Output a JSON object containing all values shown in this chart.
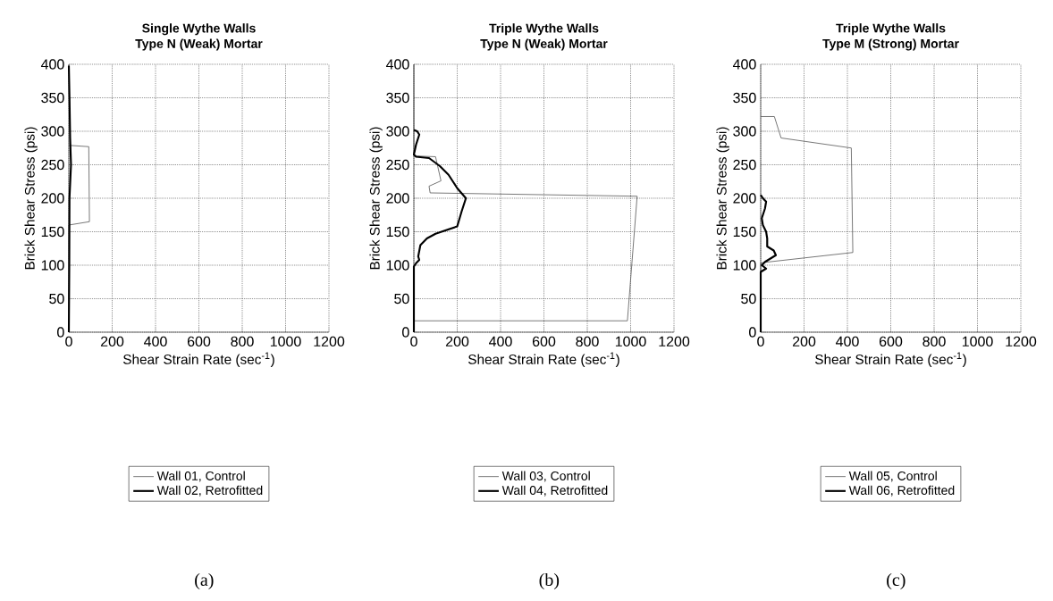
{
  "chart_data": [
    {
      "type": "line",
      "title": "Single Wythe Walls",
      "subtitle": "Type N (Weak) Mortar",
      "xlabel": "Shear Strain Rate (sec$^{-1}$)",
      "ylabel": "Brick Shear Stress (psi)",
      "xlim": [
        0,
        1200
      ],
      "ylim": [
        0,
        400
      ],
      "xticks": [
        0,
        200,
        400,
        600,
        800,
        1000,
        1200
      ],
      "yticks": [
        0,
        50,
        100,
        150,
        200,
        250,
        300,
        350,
        400
      ],
      "grid": true,
      "legend": "bottom",
      "annotations": [
        "(a)"
      ],
      "series": [
        {
          "name": "Wall 01, Control",
          "color": "#555555",
          "x": [
            0,
            0,
            95,
            92,
            0
          ],
          "values": [
            0,
            160,
            165,
            277,
            279
          ]
        },
        {
          "name": "Wall 02, Retrofitted",
          "color": "#000000",
          "x": [
            0,
            2,
            3,
            10,
            6,
            3,
            0
          ],
          "values": [
            0,
            100,
            200,
            250,
            290,
            350,
            398
          ]
        }
      ]
    },
    {
      "type": "line",
      "title": "Triple Wythe Walls",
      "subtitle": "Type N (Weak) Mortar",
      "xlabel": "Shear Strain Rate (sec$^{-1}$)",
      "ylabel": "Brick Shear Stress (psi)",
      "xlim": [
        0,
        1200
      ],
      "ylim": [
        0,
        400
      ],
      "xticks": [
        0,
        200,
        400,
        600,
        800,
        1000,
        1200
      ],
      "yticks": [
        0,
        50,
        100,
        150,
        200,
        250,
        300,
        350,
        400
      ],
      "grid": true,
      "legend": "bottom",
      "annotations": [
        "(b)"
      ],
      "series": [
        {
          "name": "Wall 03, Control",
          "color": "#555555",
          "x": [
            0,
            0,
            985,
            1030,
            75,
            70,
            125,
            100,
            15,
            0,
            0
          ],
          "values": [
            0,
            17,
            17,
            203,
            208,
            218,
            226,
            262,
            263,
            265,
            400
          ]
        },
        {
          "name": "Wall 04, Retrofitted",
          "color": "#000000",
          "x": [
            0,
            0,
            10,
            25,
            20,
            30,
            60,
            100,
            200,
            220,
            240,
            200,
            160,
            120,
            70,
            10,
            0,
            10,
            25,
            15,
            0
          ],
          "values": [
            0,
            98,
            103,
            108,
            113,
            130,
            140,
            147,
            158,
            180,
            200,
            215,
            235,
            248,
            260,
            262,
            265,
            280,
            295,
            300,
            302
          ]
        }
      ]
    },
    {
      "type": "line",
      "title": "Triple Wythe Walls",
      "subtitle": "Type M (Strong) Mortar",
      "xlabel": "Shear Strain Rate (sec$^{-1}$)",
      "ylabel": "Brick Shear Stress (psi)",
      "xlim": [
        0,
        1200
      ],
      "ylim": [
        0,
        400
      ],
      "xticks": [
        0,
        200,
        400,
        600,
        800,
        1000,
        1200
      ],
      "yticks": [
        0,
        50,
        100,
        150,
        200,
        250,
        300,
        350,
        400
      ],
      "grid": true,
      "legend": "bottom",
      "annotations": [
        "(c)"
      ],
      "series": [
        {
          "name": "Wall 05, Control",
          "color": "#555555",
          "x": [
            0,
            0,
            11,
            425,
            418,
            94,
            63,
            0
          ],
          "values": [
            0,
            103,
            104,
            119,
            275,
            290,
            322,
            322
          ]
        },
        {
          "name": "Wall 06, Retrofitted",
          "color": "#000000",
          "x": [
            0,
            0,
            25,
            5,
            20,
            70,
            60,
            30,
            30,
            25,
            10,
            5,
            20,
            25,
            10,
            0
          ],
          "values": [
            0,
            90,
            95,
            100,
            105,
            115,
            122,
            128,
            140,
            150,
            160,
            170,
            185,
            195,
            200,
            205
          ]
        }
      ]
    }
  ]
}
